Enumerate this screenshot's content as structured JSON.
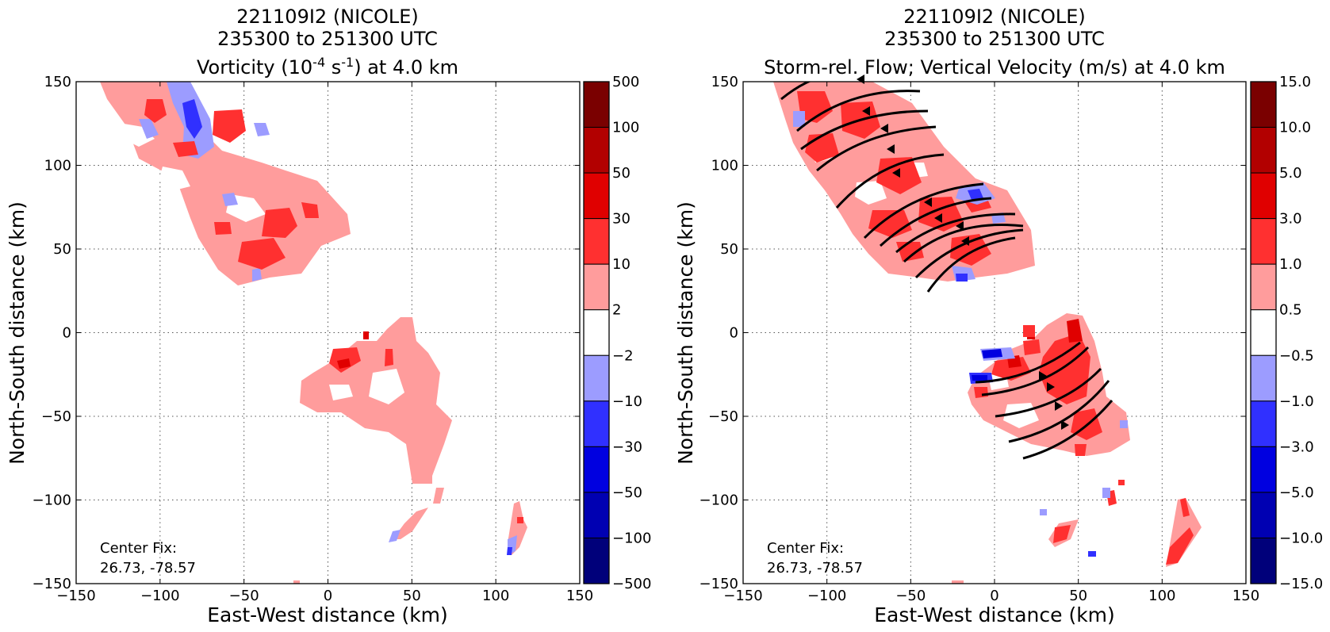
{
  "chart_data": [
    {
      "type": "heatmap",
      "title_line1": "221109I2 (NICOLE)",
      "title_line2": "235300 to 251300 UTC",
      "title_line3": "Vorticity (10",
      "title_line3_exp": "-4",
      "title_line3_mid": " s",
      "title_line3_exp2": "-1",
      "title_line3_end": ") at 4.0 km",
      "xlabel": "East-West distance (km)",
      "ylabel": "North-South distance (km)",
      "xlim": [
        -150,
        150
      ],
      "ylim": [
        -150,
        150
      ],
      "x_ticks": [
        "−150",
        "−100",
        "−50",
        "0",
        "50",
        "100",
        "150"
      ],
      "y_ticks": [
        "150",
        "100",
        "50",
        "0",
        "−50",
        "−100",
        "−150"
      ],
      "grid": true,
      "annotation": [
        "Center Fix:",
        "26.73, -78.57"
      ],
      "colorbar_ticks": [
        "500",
        "100",
        "50",
        "30",
        "10",
        "2",
        "−2",
        "−10",
        "−30",
        "−50",
        "−100",
        "−500"
      ],
      "colorbar_colors": [
        "#7a0000",
        "#b20000",
        "#e00000",
        "#ff3030",
        "#ff9c9c",
        "#ffffff",
        "#9c9cff",
        "#3030ff",
        "#0000e0",
        "#0000b2",
        "#00007a"
      ]
    },
    {
      "type": "heatmap",
      "title_line1": "221109I2 (NICOLE)",
      "title_line2": "235300 to 251300 UTC",
      "title_line3": "Storm-rel. Flow; Vertical Velocity (m/s) at 4.0 km",
      "xlabel": "East-West distance (km)",
      "ylabel": "North-South distance (km)",
      "xlim": [
        -150,
        150
      ],
      "ylim": [
        -150,
        150
      ],
      "x_ticks": [
        "−150",
        "−100",
        "−50",
        "0",
        "50",
        "100",
        "150"
      ],
      "y_ticks": [
        "150",
        "100",
        "50",
        "0",
        "−50",
        "−100",
        "−150"
      ],
      "grid": true,
      "annotation": [
        "Center Fix:",
        "26.73, -78.57"
      ],
      "colorbar_ticks": [
        "15.0",
        "10.0",
        "5.0",
        "3.0",
        "1.0",
        "0.5",
        "−0.5",
        "−1.0",
        "−3.0",
        "−5.0",
        "−10.0",
        "−15.0"
      ],
      "colorbar_colors": [
        "#7a0000",
        "#b20000",
        "#e00000",
        "#ff3030",
        "#ff9c9c",
        "#ffffff",
        "#9c9cff",
        "#3030ff",
        "#0000e0",
        "#0000b2",
        "#00007a"
      ],
      "streamlines": "storm-relative flow"
    }
  ]
}
